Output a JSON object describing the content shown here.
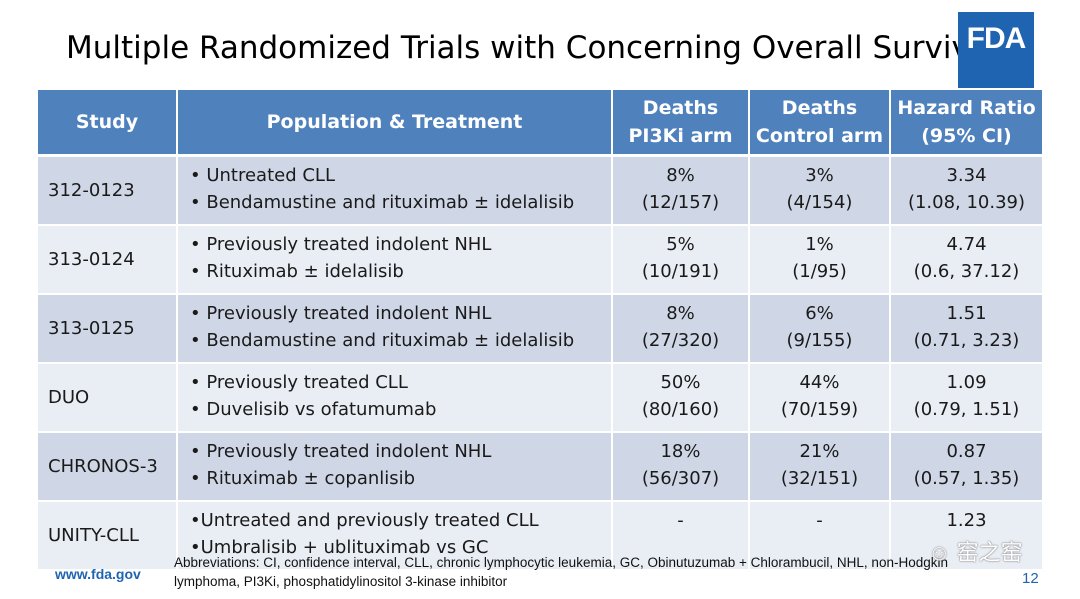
{
  "slide": {
    "title": "Multiple Randomized Trials with Concerning Overall Survival",
    "logo_text": "FDA",
    "footer_url": "www.fda.gov",
    "abbreviations": "Abbreviations: CI, confidence interval, CLL, chronic lymphocytic leukemia, GC, Obinutuzumab + Chlorambucil, NHL, non-Hodgkin lymphoma, PI3Ki, phosphatidylinositol 3-kinase inhibitor",
    "page_number": "12",
    "watermark": "☺ 窑之窑"
  },
  "table": {
    "headers": {
      "study": "Study",
      "population": "Population & Treatment",
      "deaths_pi3ki_l1": "Deaths",
      "deaths_pi3ki_l2": "PI3Ki arm",
      "deaths_control_l1": "Deaths",
      "deaths_control_l2": "Control arm",
      "hr_l1": "Hazard Ratio",
      "hr_l2": "(95% CI)"
    },
    "rows": [
      {
        "study": "312-0123",
        "pop1": "• Untreated CLL",
        "pop2": "• Bendamustine and rituximab ± idelalisib",
        "pi3ki_pct": "8%",
        "pi3ki_n": "(12/157)",
        "ctrl_pct": "3%",
        "ctrl_n": "(4/154)",
        "hr": "3.34",
        "ci": "(1.08, 10.39)"
      },
      {
        "study": "313-0124",
        "pop1": "• Previously treated indolent NHL",
        "pop2": "• Rituximab ± idelalisib",
        "pi3ki_pct": "5%",
        "pi3ki_n": "(10/191)",
        "ctrl_pct": "1%",
        "ctrl_n": "(1/95)",
        "hr": "4.74",
        "ci": "(0.6, 37.12)"
      },
      {
        "study": "313-0125",
        "pop1": "• Previously treated indolent NHL",
        "pop2": "• Bendamustine and rituximab ± idelalisib",
        "pi3ki_pct": "8%",
        "pi3ki_n": "(27/320)",
        "ctrl_pct": "6%",
        "ctrl_n": "(9/155)",
        "hr": "1.51",
        "ci": "(0.71, 3.23)"
      },
      {
        "study": "DUO",
        "pop1": "• Previously treated CLL",
        "pop2": "• Duvelisib vs ofatumumab",
        "pi3ki_pct": "50%",
        "pi3ki_n": "(80/160)",
        "ctrl_pct": "44%",
        "ctrl_n": "(70/159)",
        "hr": "1.09",
        "ci": "(0.79, 1.51)"
      },
      {
        "study": "CHRONOS-3",
        "pop1": "• Previously treated indolent NHL",
        "pop2": "• Rituximab ± copanlisib",
        "pi3ki_pct": "18%",
        "pi3ki_n": "(56/307)",
        "ctrl_pct": "21%",
        "ctrl_n": "(32/151)",
        "hr": "0.87",
        "ci": "(0.57, 1.35)"
      },
      {
        "study": "UNITY-CLL",
        "pop1": "•Untreated and previously treated CLL",
        "pop2": "•Umbralisib + ublituximab vs GC",
        "pi3ki_pct": "-",
        "pi3ki_n": "",
        "ctrl_pct": "-",
        "ctrl_n": "",
        "hr": "1.23",
        "ci": ""
      }
    ]
  }
}
